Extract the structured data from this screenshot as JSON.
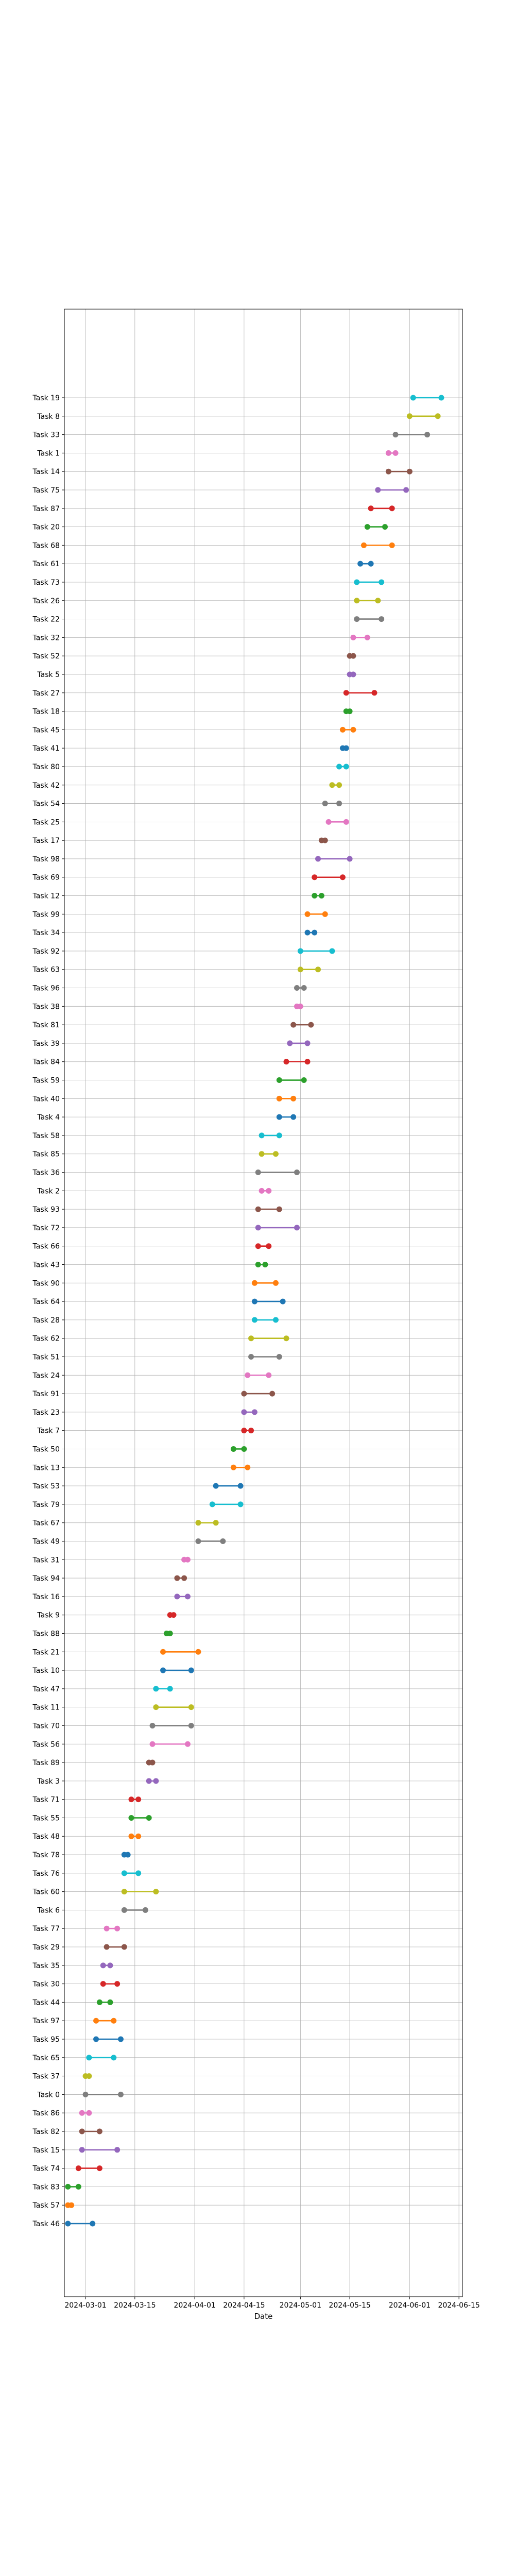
{
  "chart_data": {
    "type": "dumbbell",
    "title": "",
    "xlabel": "Date",
    "ylabel": "",
    "grid": true,
    "legend": "none",
    "xlim": [
      "2024-02-24",
      "2024-06-16"
    ],
    "x_ticks": [
      "2024-03-01",
      "2024-03-15",
      "2024-04-01",
      "2024-04-15",
      "2024-05-01",
      "2024-05-15",
      "2024-06-01",
      "2024-06-15"
    ],
    "marker_colors": [
      "#1f77b4",
      "#ff7f0e",
      "#2ca02c",
      "#d62728",
      "#9467bd",
      "#8c564b",
      "#e377c2",
      "#7f7f7f",
      "#bcbd22",
      "#17becf"
    ],
    "tasks": [
      {
        "name": "Task 19",
        "start": "2024-06-02",
        "end": "2024-06-10"
      },
      {
        "name": "Task 8",
        "start": "2024-06-01",
        "end": "2024-06-09"
      },
      {
        "name": "Task 33",
        "start": "2024-05-28",
        "end": "2024-06-06"
      },
      {
        "name": "Task 1",
        "start": "2024-05-26",
        "end": "2024-05-28"
      },
      {
        "name": "Task 14",
        "start": "2024-05-26",
        "end": "2024-06-01"
      },
      {
        "name": "Task 75",
        "start": "2024-05-23",
        "end": "2024-05-31"
      },
      {
        "name": "Task 87",
        "start": "2024-05-21",
        "end": "2024-05-27"
      },
      {
        "name": "Task 20",
        "start": "2024-05-20",
        "end": "2024-05-25"
      },
      {
        "name": "Task 68",
        "start": "2024-05-19",
        "end": "2024-05-27"
      },
      {
        "name": "Task 61",
        "start": "2024-05-18",
        "end": "2024-05-21"
      },
      {
        "name": "Task 73",
        "start": "2024-05-17",
        "end": "2024-05-24"
      },
      {
        "name": "Task 26",
        "start": "2024-05-17",
        "end": "2024-05-23"
      },
      {
        "name": "Task 22",
        "start": "2024-05-17",
        "end": "2024-05-24"
      },
      {
        "name": "Task 32",
        "start": "2024-05-16",
        "end": "2024-05-20"
      },
      {
        "name": "Task 52",
        "start": "2024-05-15",
        "end": "2024-05-16"
      },
      {
        "name": "Task 5",
        "start": "2024-05-15",
        "end": "2024-05-16"
      },
      {
        "name": "Task 27",
        "start": "2024-05-14",
        "end": "2024-05-22"
      },
      {
        "name": "Task 18",
        "start": "2024-05-14",
        "end": "2024-05-15"
      },
      {
        "name": "Task 45",
        "start": "2024-05-13",
        "end": "2024-05-16"
      },
      {
        "name": "Task 41",
        "start": "2024-05-13",
        "end": "2024-05-14"
      },
      {
        "name": "Task 80",
        "start": "2024-05-12",
        "end": "2024-05-14"
      },
      {
        "name": "Task 42",
        "start": "2024-05-10",
        "end": "2024-05-12"
      },
      {
        "name": "Task 54",
        "start": "2024-05-08",
        "end": "2024-05-12"
      },
      {
        "name": "Task 25",
        "start": "2024-05-09",
        "end": "2024-05-14"
      },
      {
        "name": "Task 17",
        "start": "2024-05-07",
        "end": "2024-05-08"
      },
      {
        "name": "Task 98",
        "start": "2024-05-06",
        "end": "2024-05-15"
      },
      {
        "name": "Task 69",
        "start": "2024-05-05",
        "end": "2024-05-13"
      },
      {
        "name": "Task 12",
        "start": "2024-05-05",
        "end": "2024-05-07"
      },
      {
        "name": "Task 99",
        "start": "2024-05-03",
        "end": "2024-05-08"
      },
      {
        "name": "Task 34",
        "start": "2024-05-03",
        "end": "2024-05-05"
      },
      {
        "name": "Task 92",
        "start": "2024-05-01",
        "end": "2024-05-10"
      },
      {
        "name": "Task 63",
        "start": "2024-05-01",
        "end": "2024-05-06"
      },
      {
        "name": "Task 96",
        "start": "2024-04-30",
        "end": "2024-05-02"
      },
      {
        "name": "Task 38",
        "start": "2024-04-30",
        "end": "2024-05-01"
      },
      {
        "name": "Task 81",
        "start": "2024-04-29",
        "end": "2024-05-04"
      },
      {
        "name": "Task 39",
        "start": "2024-04-28",
        "end": "2024-05-03"
      },
      {
        "name": "Task 84",
        "start": "2024-04-27",
        "end": "2024-05-03"
      },
      {
        "name": "Task 59",
        "start": "2024-04-25",
        "end": "2024-05-02"
      },
      {
        "name": "Task 40",
        "start": "2024-04-25",
        "end": "2024-04-29"
      },
      {
        "name": "Task 4",
        "start": "2024-04-25",
        "end": "2024-04-29"
      },
      {
        "name": "Task 58",
        "start": "2024-04-20",
        "end": "2024-04-25"
      },
      {
        "name": "Task 85",
        "start": "2024-04-20",
        "end": "2024-04-24"
      },
      {
        "name": "Task 36",
        "start": "2024-04-19",
        "end": "2024-04-30"
      },
      {
        "name": "Task 2",
        "start": "2024-04-20",
        "end": "2024-04-22"
      },
      {
        "name": "Task 93",
        "start": "2024-04-19",
        "end": "2024-04-25"
      },
      {
        "name": "Task 72",
        "start": "2024-04-19",
        "end": "2024-04-30"
      },
      {
        "name": "Task 66",
        "start": "2024-04-19",
        "end": "2024-04-22"
      },
      {
        "name": "Task 43",
        "start": "2024-04-19",
        "end": "2024-04-21"
      },
      {
        "name": "Task 90",
        "start": "2024-04-18",
        "end": "2024-04-24"
      },
      {
        "name": "Task 64",
        "start": "2024-04-18",
        "end": "2024-04-26"
      },
      {
        "name": "Task 28",
        "start": "2024-04-18",
        "end": "2024-04-24"
      },
      {
        "name": "Task 62",
        "start": "2024-04-17",
        "end": "2024-04-27"
      },
      {
        "name": "Task 51",
        "start": "2024-04-17",
        "end": "2024-04-25"
      },
      {
        "name": "Task 24",
        "start": "2024-04-16",
        "end": "2024-04-22"
      },
      {
        "name": "Task 91",
        "start": "2024-04-15",
        "end": "2024-04-23"
      },
      {
        "name": "Task 23",
        "start": "2024-04-15",
        "end": "2024-04-18"
      },
      {
        "name": "Task 7",
        "start": "2024-04-15",
        "end": "2024-04-17"
      },
      {
        "name": "Task 50",
        "start": "2024-04-12",
        "end": "2024-04-15"
      },
      {
        "name": "Task 13",
        "start": "2024-04-12",
        "end": "2024-04-16"
      },
      {
        "name": "Task 53",
        "start": "2024-04-07",
        "end": "2024-04-14"
      },
      {
        "name": "Task 79",
        "start": "2024-04-06",
        "end": "2024-04-14"
      },
      {
        "name": "Task 67",
        "start": "2024-04-02",
        "end": "2024-04-07"
      },
      {
        "name": "Task 49",
        "start": "2024-04-02",
        "end": "2024-04-09"
      },
      {
        "name": "Task 31",
        "start": "2024-03-29",
        "end": "2024-03-30"
      },
      {
        "name": "Task 94",
        "start": "2024-03-27",
        "end": "2024-03-29"
      },
      {
        "name": "Task 16",
        "start": "2024-03-27",
        "end": "2024-03-30"
      },
      {
        "name": "Task 9",
        "start": "2024-03-25",
        "end": "2024-03-26"
      },
      {
        "name": "Task 88",
        "start": "2024-03-24",
        "end": "2024-03-25"
      },
      {
        "name": "Task 21",
        "start": "2024-03-23",
        "end": "2024-04-02"
      },
      {
        "name": "Task 10",
        "start": "2024-03-23",
        "end": "2024-03-31"
      },
      {
        "name": "Task 47",
        "start": "2024-03-21",
        "end": "2024-03-25"
      },
      {
        "name": "Task 11",
        "start": "2024-03-21",
        "end": "2024-03-31"
      },
      {
        "name": "Task 70",
        "start": "2024-03-20",
        "end": "2024-03-31"
      },
      {
        "name": "Task 56",
        "start": "2024-03-20",
        "end": "2024-03-30"
      },
      {
        "name": "Task 89",
        "start": "2024-03-19",
        "end": "2024-03-20"
      },
      {
        "name": "Task 3",
        "start": "2024-03-19",
        "end": "2024-03-21"
      },
      {
        "name": "Task 71",
        "start": "2024-03-14",
        "end": "2024-03-16"
      },
      {
        "name": "Task 55",
        "start": "2024-03-14",
        "end": "2024-03-19"
      },
      {
        "name": "Task 48",
        "start": "2024-03-14",
        "end": "2024-03-16"
      },
      {
        "name": "Task 78",
        "start": "2024-03-12",
        "end": "2024-03-13"
      },
      {
        "name": "Task 76",
        "start": "2024-03-12",
        "end": "2024-03-16"
      },
      {
        "name": "Task 60",
        "start": "2024-03-12",
        "end": "2024-03-21"
      },
      {
        "name": "Task 6",
        "start": "2024-03-12",
        "end": "2024-03-18"
      },
      {
        "name": "Task 77",
        "start": "2024-03-07",
        "end": "2024-03-10"
      },
      {
        "name": "Task 29",
        "start": "2024-03-07",
        "end": "2024-03-12"
      },
      {
        "name": "Task 35",
        "start": "2024-03-06",
        "end": "2024-03-08"
      },
      {
        "name": "Task 30",
        "start": "2024-03-06",
        "end": "2024-03-10"
      },
      {
        "name": "Task 44",
        "start": "2024-03-05",
        "end": "2024-03-08"
      },
      {
        "name": "Task 97",
        "start": "2024-03-04",
        "end": "2024-03-09"
      },
      {
        "name": "Task 95",
        "start": "2024-03-04",
        "end": "2024-03-11"
      },
      {
        "name": "Task 65",
        "start": "2024-03-02",
        "end": "2024-03-09"
      },
      {
        "name": "Task 37",
        "start": "2024-03-01",
        "end": "2024-03-02"
      },
      {
        "name": "Task 0",
        "start": "2024-03-01",
        "end": "2024-03-11"
      },
      {
        "name": "Task 86",
        "start": "2024-02-29",
        "end": "2024-03-02"
      },
      {
        "name": "Task 82",
        "start": "2024-02-29",
        "end": "2024-03-05"
      },
      {
        "name": "Task 15",
        "start": "2024-02-29",
        "end": "2024-03-10"
      },
      {
        "name": "Task 74",
        "start": "2024-02-28",
        "end": "2024-03-05"
      },
      {
        "name": "Task 83",
        "start": "2024-02-25",
        "end": "2024-02-28"
      },
      {
        "name": "Task 57",
        "start": "2024-02-25",
        "end": "2024-02-26"
      },
      {
        "name": "Task 46",
        "start": "2024-02-25",
        "end": "2024-03-03"
      }
    ]
  }
}
